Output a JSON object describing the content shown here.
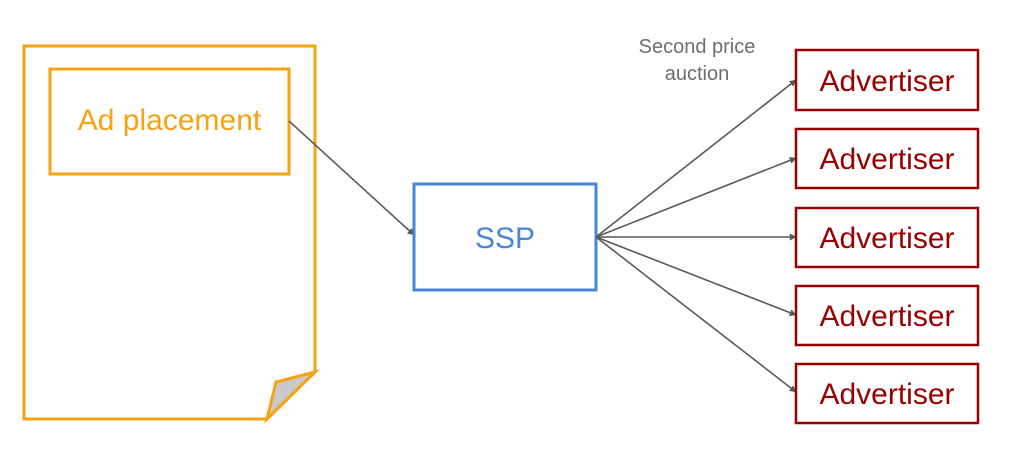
{
  "colors": {
    "page": "#f5a312",
    "page_fold_fill": "#c9c9c9",
    "ad_placement": "#f5a312",
    "ssp": "#4a86d8",
    "advertiser": "#980000",
    "arrow": "#595959",
    "annotation": "#6e6e6e"
  },
  "ad_placement": {
    "label": "Ad placement"
  },
  "ssp": {
    "label": "SSP"
  },
  "auction_note": {
    "line1": "Second price",
    "line2": "auction"
  },
  "advertisers": [
    {
      "label": "Advertiser"
    },
    {
      "label": "Advertiser"
    },
    {
      "label": "Advertiser"
    },
    {
      "label": "Advertiser"
    },
    {
      "label": "Advertiser"
    }
  ]
}
